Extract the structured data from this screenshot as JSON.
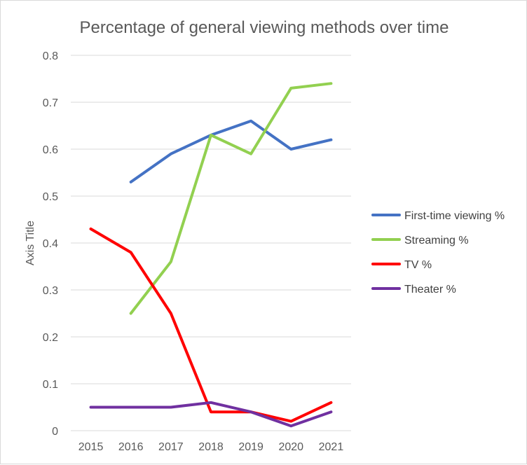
{
  "chart_data": {
    "type": "line",
    "title": "Percentage of general viewing methods over time",
    "xlabel": "",
    "ylabel": "Axis Title",
    "categories": [
      "2015",
      "2016",
      "2017",
      "2018",
      "2019",
      "2020",
      "2021"
    ],
    "y_ticks": [
      "0",
      "0.1",
      "0.2",
      "0.3",
      "0.4",
      "0.5",
      "0.6",
      "0.7",
      "0.8"
    ],
    "ylim": [
      0,
      0.8
    ],
    "grid": true,
    "legend_position": "right",
    "series": [
      {
        "name": "First-time viewing %",
        "color": "#4472c4",
        "values": [
          null,
          0.53,
          0.59,
          0.63,
          0.66,
          0.6,
          0.62
        ]
      },
      {
        "name": "Streaming %",
        "color": "#92d050",
        "values": [
          null,
          0.25,
          0.36,
          0.63,
          0.59,
          0.73,
          0.74
        ]
      },
      {
        "name": "TV %",
        "color": "#ff0000",
        "values": [
          0.43,
          0.38,
          0.25,
          0.04,
          0.04,
          0.02,
          0.06
        ]
      },
      {
        "name": "Theater %",
        "color": "#7030a0",
        "values": [
          0.05,
          0.05,
          0.05,
          0.06,
          0.04,
          0.01,
          0.04
        ]
      }
    ]
  }
}
